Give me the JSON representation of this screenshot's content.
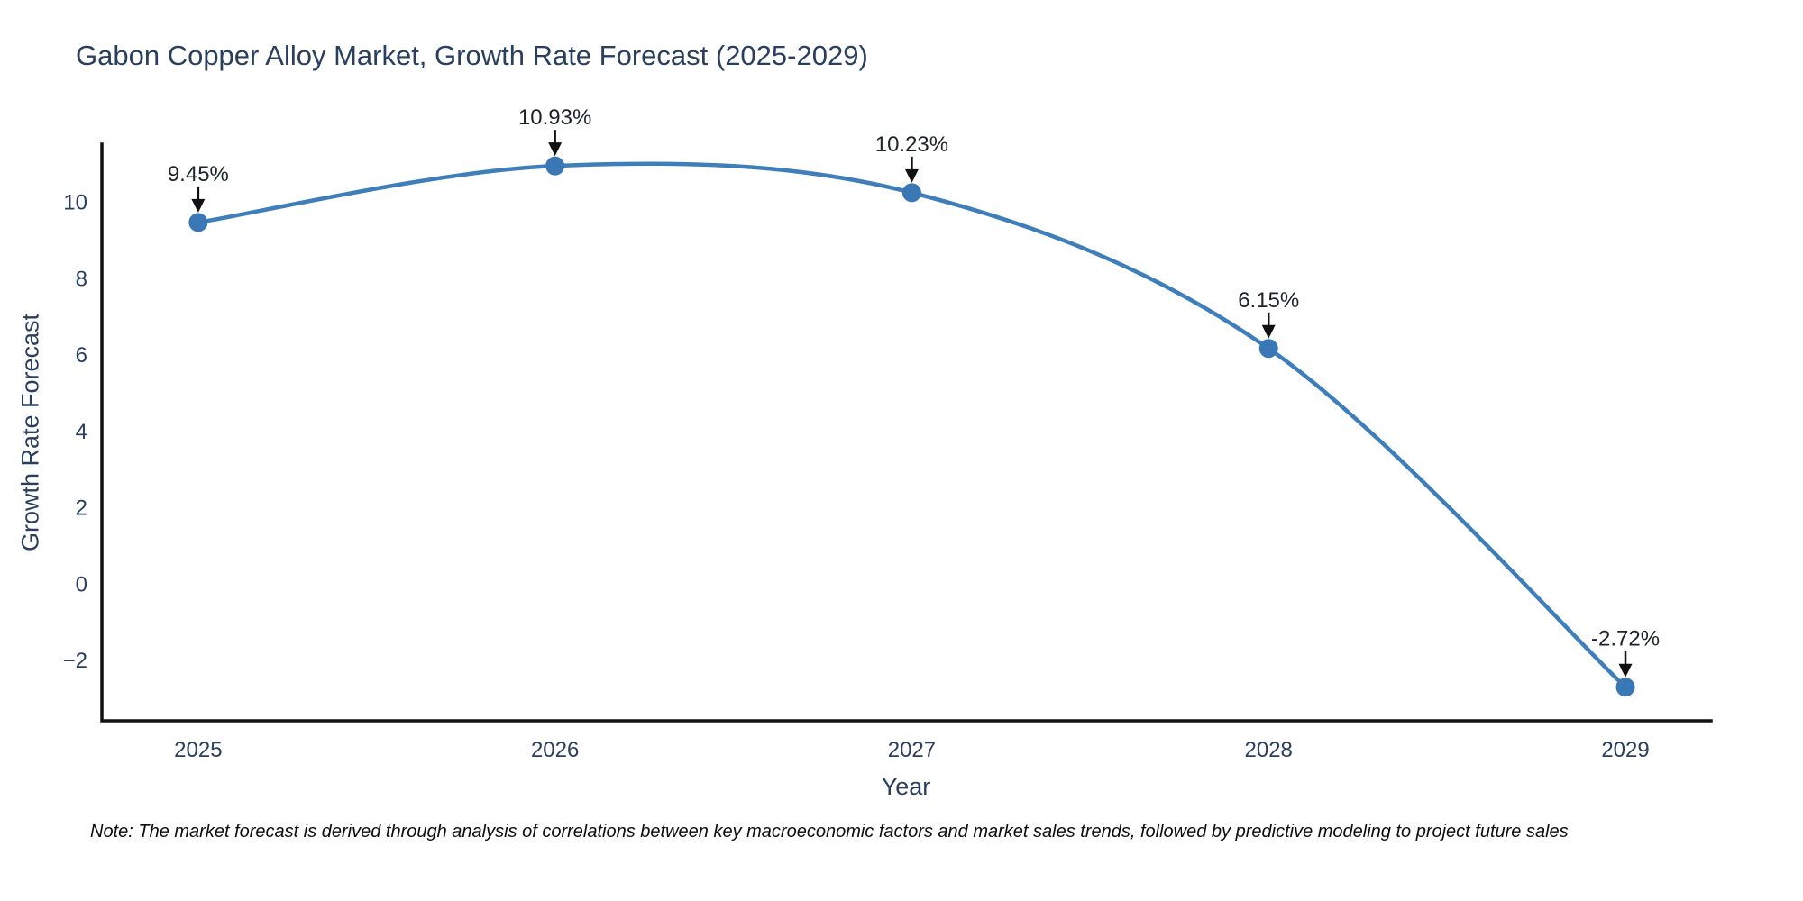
{
  "title": "Gabon Copper Alloy Market, Growth Rate Forecast (2025-2029)",
  "note": "Note: The market forecast is derived through analysis of correlations between key macroeconomic factors and market sales trends, followed by predictive modeling to project future sales",
  "chart_data": {
    "type": "line",
    "title": "Gabon Copper Alloy Market, Growth Rate Forecast (2025-2029)",
    "xlabel": "Year",
    "ylabel": "Growth Rate Forecast",
    "x": [
      2025,
      2026,
      2027,
      2028,
      2029
    ],
    "series": [
      {
        "name": "Growth Rate Forecast",
        "values": [
          9.45,
          10.93,
          10.23,
          6.15,
          -2.72
        ]
      }
    ],
    "annotations": [
      "9.45%",
      "10.93%",
      "10.23%",
      "6.15%",
      "-2.72%"
    ],
    "yticks": [
      10,
      8,
      6,
      4,
      2,
      0,
      -2
    ],
    "xlim": [
      2024.73,
      2029.24
    ],
    "ylim": [
      -3.6,
      11.5
    ],
    "grid": false,
    "legend": false,
    "line_shape": "spline",
    "colors": {
      "line": "#3e7ebb",
      "marker": "#3a78b5",
      "axis": "#111111",
      "tick_text": "#2a3f5f",
      "annotation_text": "#1f2329",
      "arrow": "#111111",
      "title_text": "#2a3f5f",
      "background": "#ffffff"
    }
  }
}
